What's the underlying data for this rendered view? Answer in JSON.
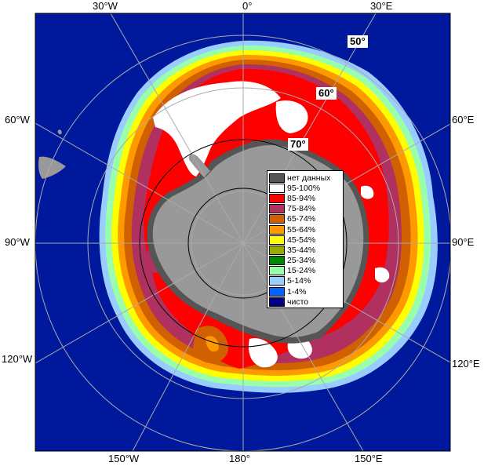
{
  "longitude_labels": {
    "top": [
      "30°W",
      "0°",
      "30°E"
    ],
    "left": [
      "60°W",
      "90°W",
      "120°W"
    ],
    "right": [
      "60°E",
      "90°E",
      "120°E"
    ],
    "bottom": [
      "150°W",
      "180°",
      "150°E"
    ]
  },
  "latitude_labels": [
    "50°",
    "60°",
    "70°"
  ],
  "legend": {
    "items": [
      {
        "label": "нет данных",
        "color": "#555555"
      },
      {
        "label": "95-100%",
        "color": "#ffffff"
      },
      {
        "label": "85-94%",
        "color": "#ff0000"
      },
      {
        "label": "75-84%",
        "color": "#b03060"
      },
      {
        "label": "65-74%",
        "color": "#d06000"
      },
      {
        "label": "55-64%",
        "color": "#ff9900"
      },
      {
        "label": "45-54%",
        "color": "#ffff00"
      },
      {
        "label": "35-44%",
        "color": "#99aa00"
      },
      {
        "label": "25-34%",
        "color": "#008800"
      },
      {
        "label": "15-24%",
        "color": "#99ffaa"
      },
      {
        "label": "5-14%",
        "color": "#99ccff"
      },
      {
        "label": "1-4%",
        "color": "#0066ff"
      },
      {
        "label": "чисто",
        "color": "#000080"
      }
    ]
  },
  "colors": {
    "ocean": "#00199c",
    "land": "#999999",
    "no_data": "#555555",
    "grid": "#aaaaaa"
  }
}
